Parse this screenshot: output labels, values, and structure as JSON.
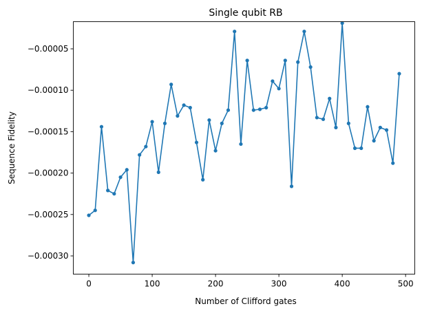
{
  "chart_data": {
    "type": "line",
    "title": "Single qubit RB",
    "xlabel": "Number of Clifford gates",
    "ylabel": "Sequence Fidelity",
    "xlim": [
      -24.5,
      514.5
    ],
    "ylim": [
      -0.000322,
      -1.72e-05
    ],
    "xticks": [
      0,
      100,
      200,
      300,
      400,
      500
    ],
    "xtick_labels": [
      "0",
      "100",
      "200",
      "300",
      "400",
      "500"
    ],
    "yticks": [
      -0.0003,
      -0.00025,
      -0.0002,
      -0.00015,
      -0.0001,
      -5e-05
    ],
    "ytick_labels": [
      "−0.00030",
      "−0.00025",
      "−0.00020",
      "−0.00015",
      "−0.00010",
      "−0.00005"
    ],
    "grid": false,
    "series": [
      {
        "color": "#1f77b4",
        "marker": "circle",
        "x": [
          0,
          10,
          20,
          30,
          40,
          50,
          60,
          70,
          80,
          90,
          100,
          110,
          120,
          130,
          140,
          150,
          160,
          170,
          180,
          190,
          200,
          210,
          220,
          230,
          240,
          250,
          260,
          270,
          280,
          290,
          300,
          310,
          320,
          330,
          340,
          350,
          360,
          370,
          380,
          390,
          400,
          410,
          420,
          430,
          440,
          450,
          460,
          470,
          480,
          490
        ],
        "y": [
          -0.000251,
          -0.000245,
          -0.000144,
          -0.000221,
          -0.000225,
          -0.000205,
          -0.000196,
          -0.000308,
          -0.000178,
          -0.000168,
          -0.000138,
          -0.000199,
          -0.00014,
          -9.3e-05,
          -0.000131,
          -0.000118,
          -0.000121,
          -0.000163,
          -0.000208,
          -0.000136,
          -0.000173,
          -0.00014,
          -0.000124,
          -2.9e-05,
          -0.000165,
          -6.4e-05,
          -0.000124,
          -0.000123,
          -0.000121,
          -8.9e-05,
          -9.8e-05,
          -6.4e-05,
          -0.000216,
          -6.6e-05,
          -2.9e-05,
          -7.2e-05,
          -0.000133,
          -0.000135,
          -0.00011,
          -0.000145,
          -1.9e-05,
          -0.00014,
          -0.00017,
          -0.00017,
          -0.00012,
          -0.000161,
          -0.000145,
          -0.000148,
          -0.000188,
          -8e-05
        ]
      }
    ]
  }
}
